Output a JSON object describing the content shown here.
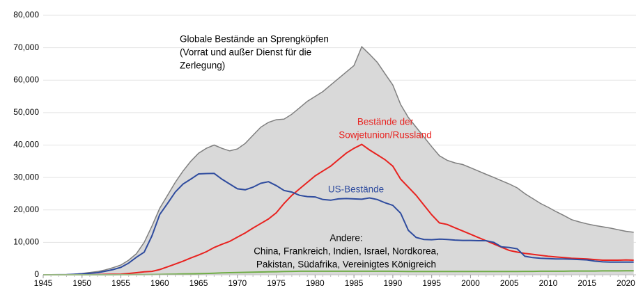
{
  "chart_data": {
    "type": "area-line",
    "x": [
      1945,
      1946,
      1947,
      1948,
      1949,
      1950,
      1951,
      1952,
      1953,
      1954,
      1955,
      1956,
      1957,
      1958,
      1959,
      1960,
      1961,
      1962,
      1963,
      1964,
      1965,
      1966,
      1967,
      1968,
      1969,
      1970,
      1971,
      1972,
      1973,
      1974,
      1975,
      1976,
      1977,
      1978,
      1979,
      1980,
      1981,
      1982,
      1983,
      1984,
      1985,
      1986,
      1987,
      1988,
      1989,
      1990,
      1991,
      1992,
      1993,
      1994,
      1995,
      1996,
      1997,
      1998,
      1999,
      2000,
      2001,
      2002,
      2003,
      2004,
      2005,
      2006,
      2007,
      2008,
      2009,
      2010,
      2011,
      2012,
      2013,
      2014,
      2015,
      2016,
      2017,
      2018,
      2019,
      2020,
      2021
    ],
    "series": [
      {
        "label": [
          "Globale Bestände an Sprengköpfen",
          "(Vorrat und außer Dienst für die",
          "Zerlegung)"
        ],
        "color": "#7f7f7f",
        "fill": "#d9d9d9",
        "values": [
          2,
          9,
          13,
          50,
          200,
          400,
          700,
          1000,
          1500,
          2200,
          3000,
          4500,
          6500,
          10000,
          15000,
          20500,
          24500,
          28500,
          32000,
          35000,
          37500,
          39000,
          40000,
          39000,
          38200,
          38800,
          40500,
          43000,
          45500,
          47000,
          47800,
          48000,
          49500,
          51500,
          53500,
          55000,
          56500,
          58500,
          60500,
          62500,
          64500,
          70300,
          68000,
          65500,
          62000,
          58500,
          52500,
          48500,
          45500,
          42500,
          39500,
          36700,
          35300,
          34500,
          34000,
          33000,
          32000,
          31000,
          30000,
          29000,
          28000,
          26800,
          25000,
          23500,
          22000,
          20800,
          19500,
          18300,
          17000,
          16300,
          15700,
          15200,
          14800,
          14400,
          13900,
          13400,
          13100
        ]
      },
      {
        "label": [
          "Bestände der",
          "Sowjetunion/Russland"
        ],
        "color": "#e8221f",
        "values": [
          0,
          0,
          0,
          0,
          1,
          5,
          25,
          50,
          120,
          150,
          200,
          400,
          650,
          900,
          1050,
          1600,
          2450,
          3300,
          4200,
          5200,
          6100,
          7100,
          8400,
          9400,
          10300,
          11600,
          12900,
          14400,
          15800,
          17200,
          19100,
          22000,
          24500,
          26500,
          28500,
          30500,
          32000,
          33500,
          35500,
          37500,
          39000,
          40200,
          38500,
          37000,
          35500,
          33500,
          29500,
          27000,
          24500,
          21500,
          18500,
          16000,
          15500,
          14500,
          13500,
          12500,
          11500,
          10500,
          9500,
          8500,
          7500,
          7000,
          6600,
          6300,
          6000,
          5700,
          5500,
          5300,
          5100,
          5000,
          4900,
          4700,
          4500,
          4500,
          4500,
          4600,
          4500
        ]
      },
      {
        "label": [
          "US-Bestände"
        ],
        "color": "#2e4b9e",
        "values": [
          2,
          9,
          13,
          50,
          170,
          300,
          450,
          650,
          1100,
          1600,
          2300,
          3600,
          5400,
          7000,
          12000,
          18600,
          22000,
          25500,
          28000,
          29500,
          31100,
          31200,
          31250,
          29500,
          28000,
          26500,
          26200,
          27000,
          28200,
          28700,
          27500,
          26000,
          25500,
          24500,
          24100,
          24000,
          23200,
          23000,
          23400,
          23500,
          23400,
          23300,
          23700,
          23200,
          22200,
          21400,
          19000,
          13700,
          11500,
          10900,
          10800,
          11000,
          10900,
          10700,
          10600,
          10600,
          10500,
          10500,
          10000,
          8600,
          8400,
          8000,
          5700,
          5300,
          5100,
          5000,
          4900,
          4900,
          4800,
          4700,
          4600,
          4200,
          4000,
          3900,
          3900,
          3900,
          3900
        ]
      },
      {
        "label": [
          "Andere:",
          "China, Frankreich, Indien, Israel, Nordkorea,",
          "Pakistan, Südafrika, Vereinigtes Königreich"
        ],
        "color": "#70ad47",
        "values": [
          0,
          0,
          0,
          0,
          0,
          0,
          0,
          0,
          5,
          10,
          20,
          30,
          50,
          70,
          90,
          110,
          150,
          200,
          250,
          300,
          350,
          400,
          500,
          600,
          650,
          700,
          750,
          800,
          850,
          900,
          950,
          1000,
          1050,
          1100,
          1100,
          1100,
          1100,
          1100,
          1100,
          1100,
          1100,
          1100,
          1100,
          1100,
          1100,
          1100,
          1050,
          1000,
          1000,
          1000,
          1000,
          1000,
          1000,
          1000,
          1000,
          1000,
          1000,
          1000,
          1000,
          1000,
          1000,
          1000,
          1050,
          1050,
          1100,
          1100,
          1100,
          1100,
          1150,
          1150,
          1150,
          1150,
          1200,
          1200,
          1200,
          1250,
          1250
        ]
      }
    ],
    "xlim": [
      1945,
      2021.3
    ],
    "xticks": [
      1945,
      1950,
      1955,
      1960,
      1965,
      1970,
      1975,
      1980,
      1985,
      1990,
      1995,
      2000,
      2005,
      2010,
      2015,
      2020
    ],
    "ylim": [
      0,
      80000
    ],
    "yticks": [
      0,
      {
        "value": 10000,
        "label": "10,000"
      },
      {
        "value": 20000,
        "label": "20,000"
      },
      {
        "value": 30000,
        "label": "30,000"
      },
      {
        "value": 40000,
        "label": "40,000"
      },
      {
        "value": 50000,
        "label": "50,000"
      },
      {
        "value": 60000,
        "label": "60,000"
      },
      {
        "value": 70000,
        "label": "70,000"
      },
      {
        "value": 80000,
        "label": "80,000"
      }
    ],
    "grid": true
  }
}
